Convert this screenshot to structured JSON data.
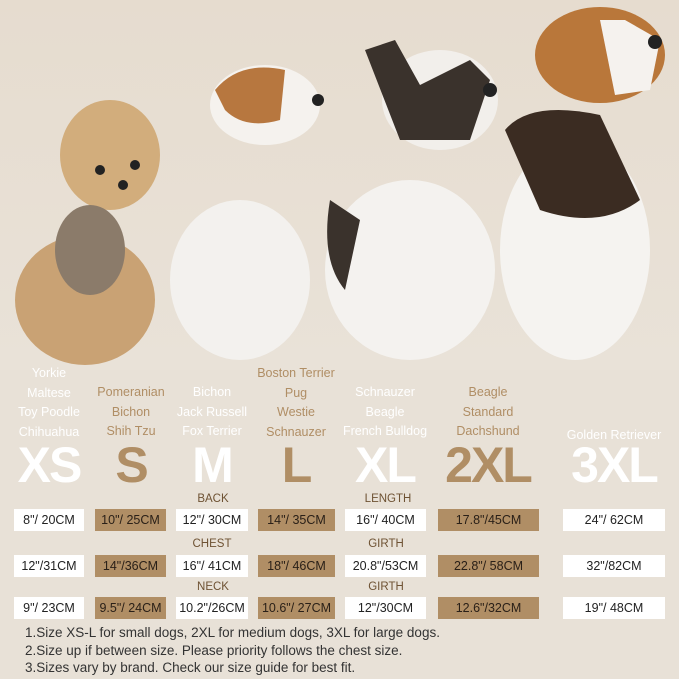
{
  "colors": {
    "background": "#e8e1d7",
    "accent": "#b08e65",
    "white": "#ffffff",
    "label": "#6e5233"
  },
  "photo": {
    "description_icon": "dogs-photo"
  },
  "columns": [
    {
      "size": "XS",
      "breeds": [
        "Yorkie",
        "Maltese",
        "Toy Poodle",
        "Chihuahua"
      ],
      "back": "8\"/ 20CM",
      "chest": "12\"/31CM",
      "neck": "9\"/ 23CM"
    },
    {
      "size": "S",
      "breeds": [
        "Pomeranian",
        "Bichon",
        "Shih Tzu"
      ],
      "back": "10\"/ 25CM",
      "chest": "14\"/36CM",
      "neck": "9.5\"/ 24CM"
    },
    {
      "size": "M",
      "breeds": [
        "Bichon",
        "Jack Russell",
        "Fox Terrier"
      ],
      "back": "12\"/ 30CM",
      "chest": "16\"/ 41CM",
      "neck": "10.2\"/26CM"
    },
    {
      "size": "L",
      "breeds": [
        "Boston Terrier",
        "Pug",
        "Westie",
        "Schnauzer"
      ],
      "back": "14\"/ 35CM",
      "chest": "18\"/ 46CM",
      "neck": "10.6\"/ 27CM"
    },
    {
      "size": "XL",
      "breeds": [
        "Schnauzer",
        "Beagle",
        "French Bulldog"
      ],
      "back": "16\"/ 40CM",
      "chest": "20.8\"/53CM",
      "neck": "12\"/30CM"
    },
    {
      "size": "2XL",
      "breeds": [
        "Beagle",
        "Standard",
        "Dachshund"
      ],
      "back": "17.8\"/45CM",
      "chest": "22.8\"/ 58CM",
      "neck": "12.6\"/32CM"
    },
    {
      "size": "3XL",
      "breeds": [
        "Golden Retriever"
      ],
      "back": "24\"/ 62CM",
      "chest": "32\"/82CM",
      "neck": "19\"/ 48CM"
    }
  ],
  "labels": {
    "back": "BACK",
    "length": "LENGTH",
    "chest": "CHEST",
    "girth1": "GIRTH",
    "neck": "NECK",
    "girth2": "GIRTH"
  },
  "notes": [
    "1.Size XS-L for small dogs, 2XL for medium dogs, 3XL for large dogs.",
    "2.Size up if between size. Please priority follows the chest size.",
    "3.Sizes vary by brand. Check our size guide for best fit."
  ]
}
